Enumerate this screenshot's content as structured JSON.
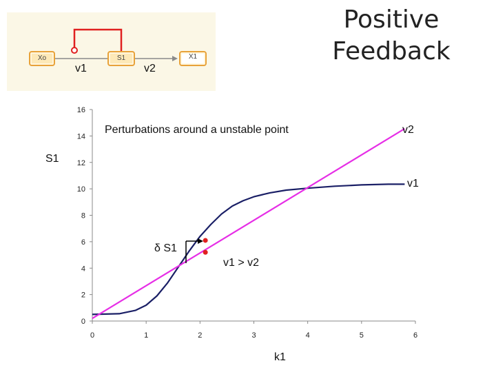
{
  "title": "Positive Feedback",
  "pathway": {
    "nodes": [
      "Xo",
      "S1",
      "X1"
    ],
    "rate_labels": [
      "v1",
      "v2"
    ],
    "feedback": "S1 activates v1"
  },
  "chart_data": {
    "type": "line",
    "annotation_title": "Perturbations around a unstable point",
    "xlabel": "k1",
    "ylabel": "S1",
    "xlim": [
      0,
      6
    ],
    "ylim": [
      0,
      16
    ],
    "xticks": [
      "0",
      "1",
      "2",
      "3",
      "4",
      "5",
      "6"
    ],
    "yticks": [
      "0",
      "2",
      "4",
      "6",
      "8",
      "10",
      "12",
      "14",
      "16"
    ],
    "series": [
      {
        "name": "v1",
        "color": "#1a1f66",
        "x": [
          0,
          0.5,
          0.8,
          1.0,
          1.2,
          1.4,
          1.6,
          1.8,
          2.0,
          2.2,
          2.4,
          2.6,
          2.8,
          3.0,
          3.3,
          3.6,
          4.0,
          4.5,
          5.0,
          5.5,
          5.8
        ],
        "y": [
          0.5,
          0.55,
          0.8,
          1.2,
          1.9,
          2.9,
          4.1,
          5.3,
          6.4,
          7.3,
          8.1,
          8.7,
          9.1,
          9.4,
          9.7,
          9.9,
          10.05,
          10.2,
          10.3,
          10.35,
          10.35
        ]
      },
      {
        "name": "v2",
        "color": "#e62ee6",
        "x": [
          0,
          5.8
        ],
        "y": [
          0.2,
          14.55
        ]
      }
    ],
    "points": [
      {
        "x": 2.1,
        "y": 6.1,
        "color": "#e02020"
      },
      {
        "x": 2.1,
        "y": 5.2,
        "color": "#e02020"
      }
    ],
    "annotations": {
      "perturbation": "δ S1",
      "comparison": "v1 > v2"
    }
  }
}
